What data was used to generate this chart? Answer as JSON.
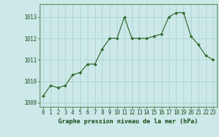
{
  "x": [
    0,
    1,
    2,
    3,
    4,
    5,
    6,
    7,
    8,
    9,
    10,
    11,
    12,
    13,
    14,
    15,
    16,
    17,
    18,
    19,
    20,
    21,
    22,
    23
  ],
  "y": [
    1009.3,
    1009.8,
    1009.7,
    1009.8,
    1010.3,
    1010.4,
    1010.8,
    1010.8,
    1011.5,
    1012.0,
    1012.0,
    1013.0,
    1012.0,
    1012.0,
    1012.0,
    1012.1,
    1012.2,
    1013.0,
    1013.2,
    1013.2,
    1012.1,
    1011.7,
    1011.2,
    1011.0
  ],
  "line_color": "#2d6a2d",
  "marker": "D",
  "marker_size": 2.0,
  "bg_color": "#cce8e8",
  "grid_color": "#b0d4d4",
  "xlabel": "Graphe pression niveau de la mer (hPa)",
  "xlabel_color": "#1a4a1a",
  "xlabel_fontsize": 6.5,
  "tick_color": "#1a4a1a",
  "tick_fontsize": 5.5,
  "ylim": [
    1008.8,
    1013.6
  ],
  "yticks": [
    1009,
    1010,
    1011,
    1012,
    1013
  ],
  "xlim": [
    -0.5,
    23.5
  ],
  "xticks": [
    0,
    1,
    2,
    3,
    4,
    5,
    6,
    7,
    8,
    9,
    10,
    11,
    12,
    13,
    14,
    15,
    16,
    17,
    18,
    19,
    20,
    21,
    22,
    23
  ]
}
